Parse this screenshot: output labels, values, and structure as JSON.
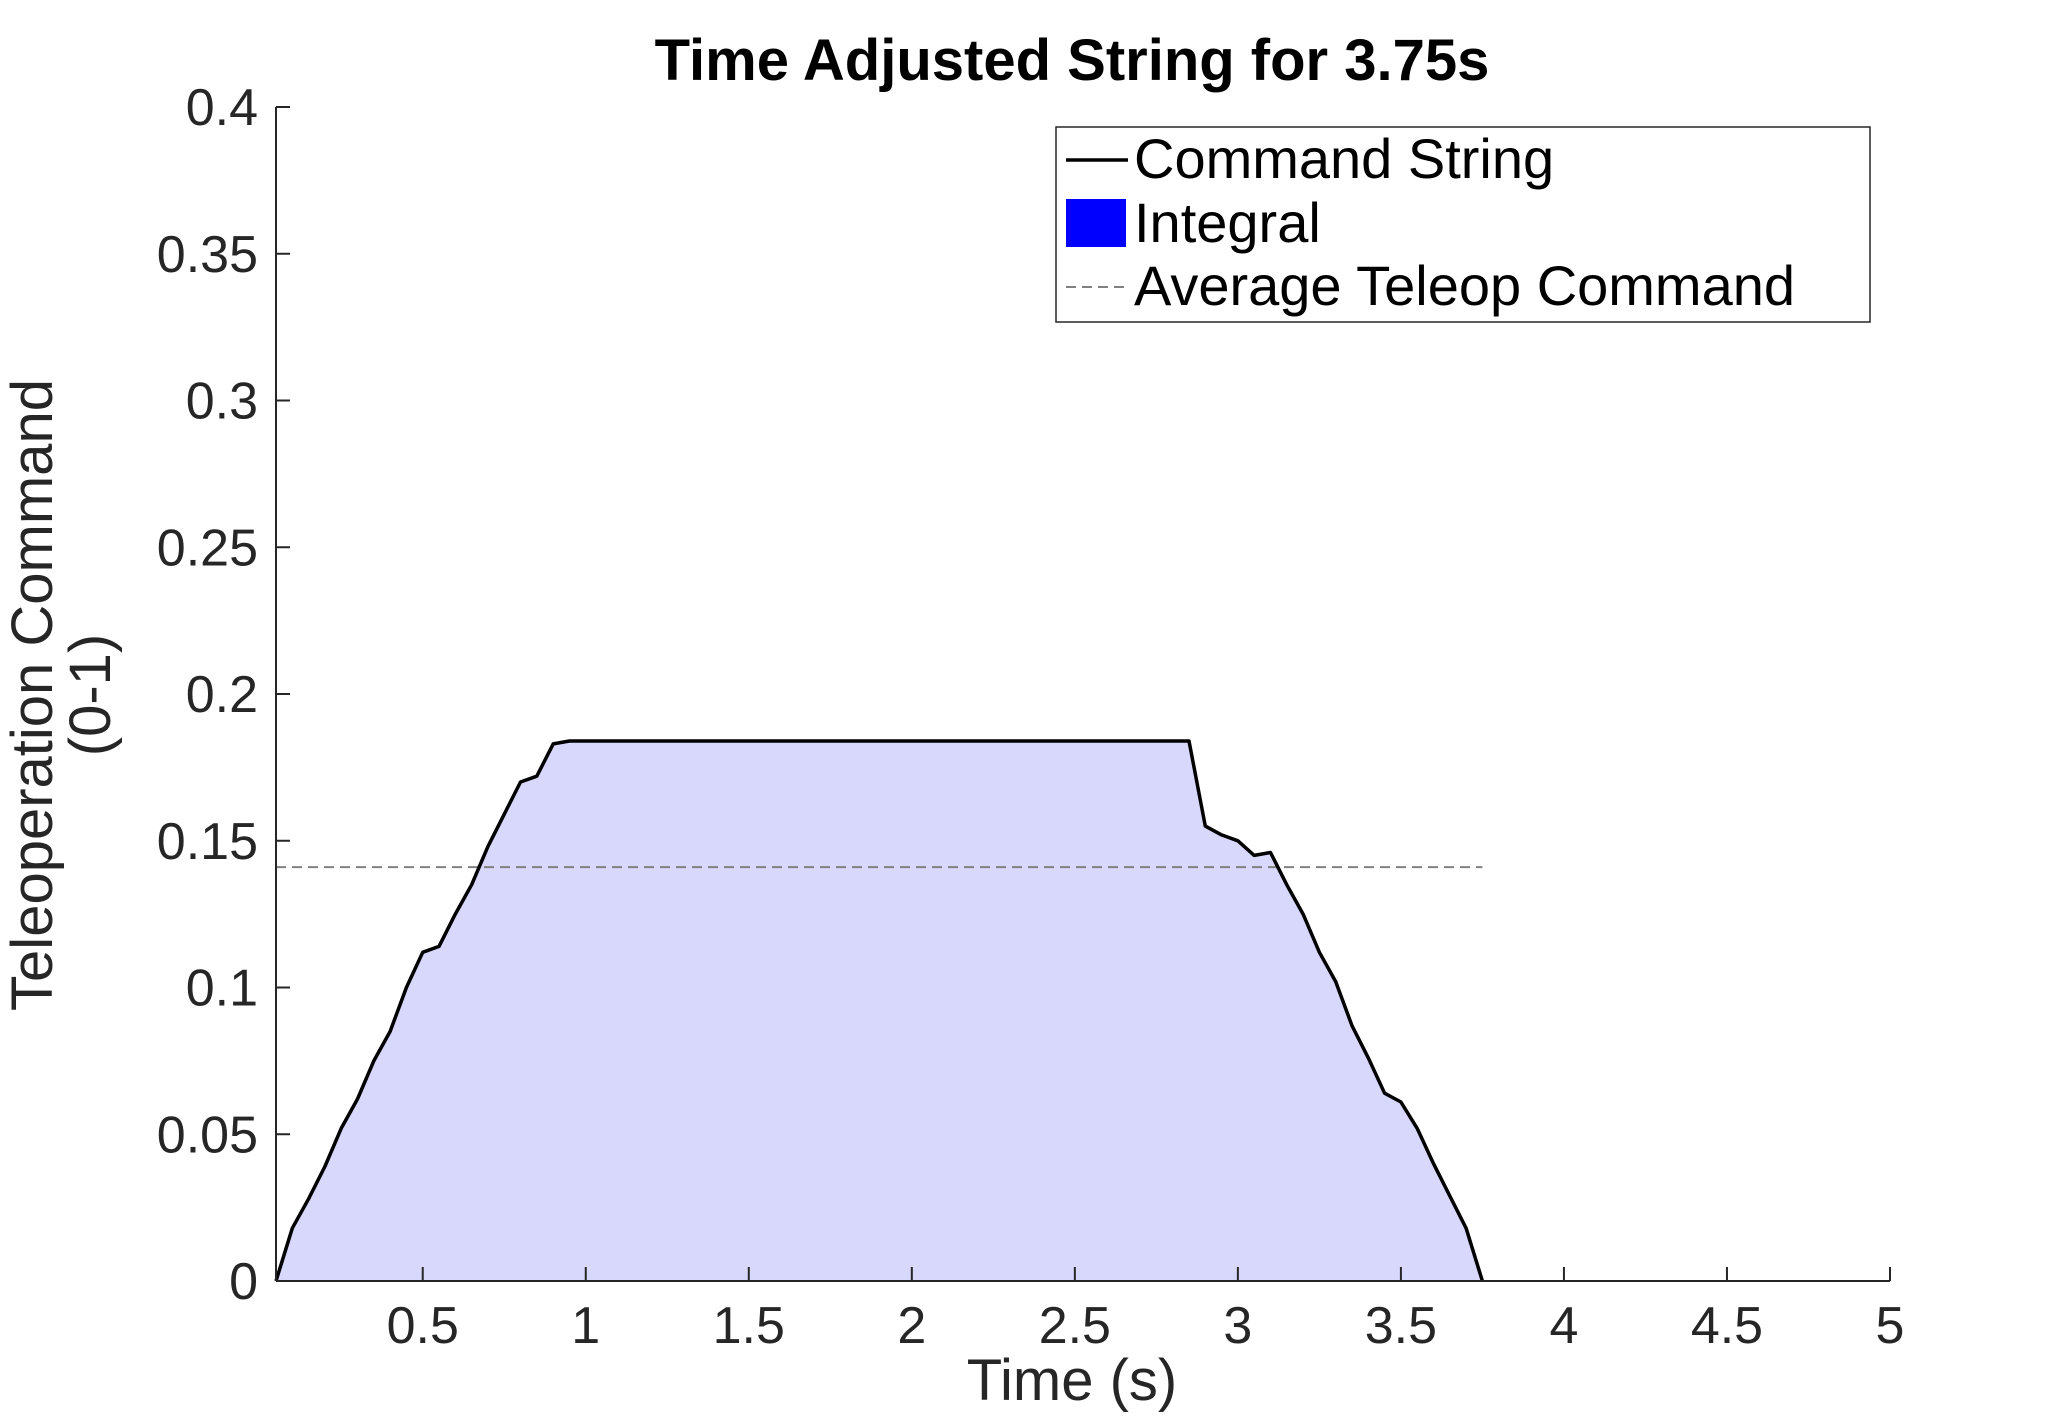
{
  "chart_data": {
    "type": "area",
    "title": "Time Adjusted String for 3.75s",
    "xlabel": "Time (s)",
    "ylabel": [
      "Teleoperation Command",
      "(0-1)"
    ],
    "xlim": [
      0.05,
      5
    ],
    "ylim": [
      0,
      0.4
    ],
    "xticks": [
      0.5,
      1,
      1.5,
      2,
      2.5,
      3,
      3.5,
      4,
      4.5,
      5
    ],
    "xtick_labels": [
      "0.5",
      "1",
      "1.5",
      "2",
      "2.5",
      "3",
      "3.5",
      "4",
      "4.5",
      "5"
    ],
    "yticks": [
      0,
      0.05,
      0.1,
      0.15,
      0.2,
      0.25,
      0.3,
      0.35,
      0.4
    ],
    "ytick_labels": [
      "0",
      "0.05",
      "0.1",
      "0.15",
      "0.2",
      "0.25",
      "0.3",
      "0.35",
      "0.4"
    ],
    "grid": false,
    "legend_position": "top-right",
    "legend": [
      {
        "label": "Command String",
        "kind": "line",
        "color": "#000000"
      },
      {
        "label": "Integral",
        "kind": "patch",
        "color": "#0000ff"
      },
      {
        "label": "Average Teleop Command",
        "kind": "dashed-line",
        "color": "#808080"
      }
    ],
    "fill_color": "#d8d8fc",
    "average_value": 0.141,
    "average_x_range": [
      0.05,
      3.75
    ],
    "series": [
      {
        "name": "Command String",
        "color": "#000000",
        "x": [
          0.05,
          0.1,
          0.15,
          0.2,
          0.25,
          0.3,
          0.35,
          0.4,
          0.45,
          0.5,
          0.55,
          0.6,
          0.65,
          0.7,
          0.75,
          0.8,
          0.85,
          0.9,
          0.95,
          1.0,
          1.5,
          2.0,
          2.5,
          2.8,
          2.85,
          2.9,
          2.95,
          3.0,
          3.05,
          3.1,
          3.15,
          3.2,
          3.25,
          3.3,
          3.35,
          3.4,
          3.45,
          3.5,
          3.55,
          3.6,
          3.65,
          3.7,
          3.75
        ],
        "values": [
          0.0,
          0.018,
          0.028,
          0.039,
          0.052,
          0.062,
          0.075,
          0.085,
          0.1,
          0.112,
          0.114,
          0.125,
          0.135,
          0.148,
          0.159,
          0.17,
          0.172,
          0.183,
          0.184,
          0.184,
          0.184,
          0.184,
          0.184,
          0.184,
          0.184,
          0.155,
          0.152,
          0.15,
          0.145,
          0.146,
          0.135,
          0.125,
          0.112,
          0.102,
          0.087,
          0.076,
          0.064,
          0.061,
          0.052,
          0.04,
          0.029,
          0.018,
          0.0
        ]
      }
    ]
  }
}
